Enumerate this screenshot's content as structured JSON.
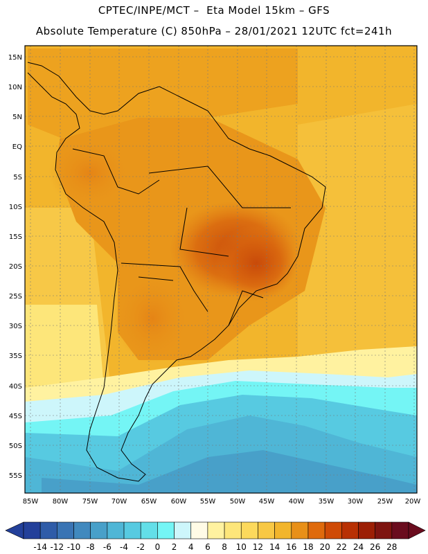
{
  "title_line1": "CPTEC/INPE/MCT –  Eta Model 15km – GFS",
  "title_line2": "Absolute Temperature (C) 850hPa – 28/01/2021 12UTC fct=241h",
  "lat_labels": [
    "15N",
    "10N",
    "5N",
    "EQ",
    "5S",
    "10S",
    "15S",
    "20S",
    "25S",
    "30S",
    "35S",
    "40S",
    "45S",
    "50S",
    "55S"
  ],
  "lon_labels": [
    "85W",
    "80W",
    "75W",
    "70W",
    "65W",
    "60W",
    "55W",
    "50W",
    "45W",
    "40W",
    "35W",
    "30W",
    "25W",
    "20W"
  ],
  "colorbar": {
    "labels": [
      "-14",
      "-12",
      "-10",
      "-8",
      "-6",
      "-4",
      "-2",
      "0",
      "2",
      "4",
      "6",
      "8",
      "10",
      "12",
      "14",
      "16",
      "18",
      "20",
      "22",
      "24",
      "26",
      "28"
    ],
    "colors": [
      "#23409a",
      "#2f5ca8",
      "#3a74b4",
      "#4189be",
      "#48a0c9",
      "#4fb6d6",
      "#57cae1",
      "#63dfe8",
      "#74f5f5",
      "#cdf6fb",
      "#fffbe6",
      "#fff2a0",
      "#fde67a",
      "#fcd95c",
      "#f8c844",
      "#f2b52c",
      "#e89018",
      "#df6a0c",
      "#cf4a06",
      "#b83003",
      "#9c1f05",
      "#7e1410",
      "#6a0c1e"
    ]
  }
}
